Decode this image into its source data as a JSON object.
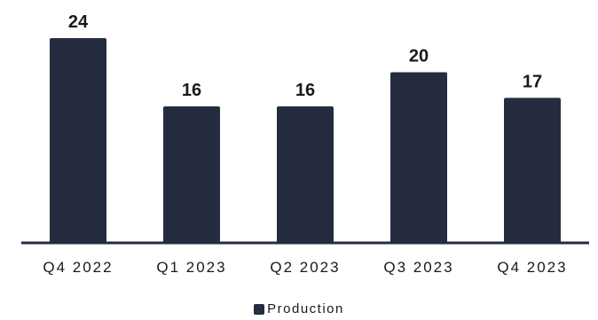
{
  "chart_data": {
    "type": "bar",
    "categories": [
      "Q4 2022",
      "Q1 2023",
      "Q2 2023",
      "Q3 2023",
      "Q4 2023"
    ],
    "series": [
      {
        "name": "Production",
        "values": [
          24,
          16,
          16,
          20,
          17
        ]
      }
    ],
    "data_labels": [
      "24",
      "16",
      "16",
      "20",
      "17"
    ],
    "title": "",
    "xlabel": "",
    "ylabel": "",
    "ylim": [
      0,
      24
    ],
    "grid": false,
    "legend_position": "bottom",
    "colors": {
      "bar": "#252c40",
      "axis": "#252c40"
    }
  },
  "legend": {
    "label": "Production"
  }
}
